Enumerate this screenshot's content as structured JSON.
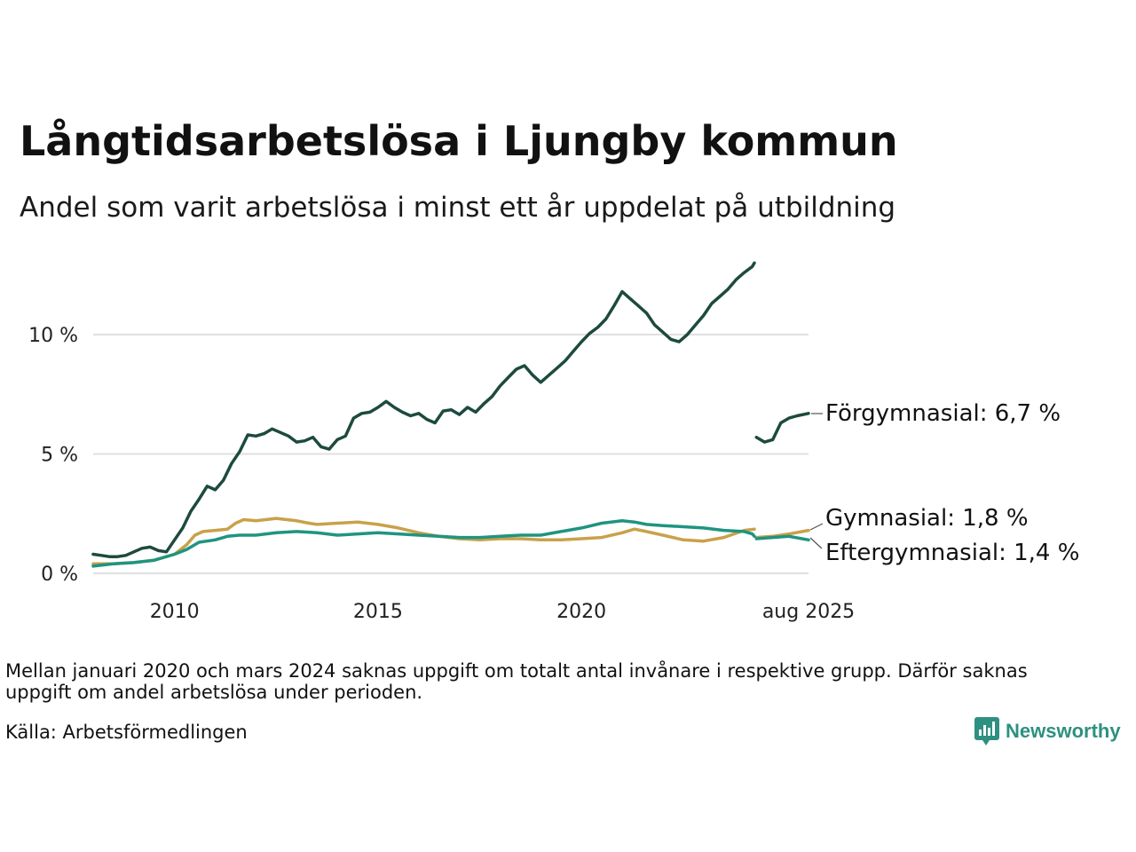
{
  "chart_data": {
    "type": "line",
    "title": "Långtidsarbetslösa i Ljungby kommun",
    "subtitle": "Andel som varit arbetslösa i minst ett år uppdelat på utbildning",
    "y_ticks": [
      {
        "value": 0,
        "label": "0 %"
      },
      {
        "value": 5,
        "label": "5 %"
      },
      {
        "value": 10,
        "label": "10 %"
      }
    ],
    "x_ticks": [
      {
        "value": 2010,
        "label": "2010"
      },
      {
        "value": 2015,
        "label": "2015"
      },
      {
        "value": 2020,
        "label": "2020"
      },
      {
        "value": 2025.58,
        "label": "aug 2025"
      }
    ],
    "xlim": [
      2008.0,
      2025.58
    ],
    "ylim": [
      0,
      13
    ],
    "grid": true,
    "gap": {
      "from": 2021.0,
      "to": 2024.25
    },
    "series": [
      {
        "name": "Förgymnasial",
        "end_label": "Förgymnasial: 6,7 %",
        "color": "#1d4a3f",
        "points": [
          [
            2008.0,
            0.8
          ],
          [
            2008.2,
            0.75
          ],
          [
            2008.4,
            0.7
          ],
          [
            2008.6,
            0.7
          ],
          [
            2008.8,
            0.75
          ],
          [
            2009.0,
            0.9
          ],
          [
            2009.2,
            1.05
          ],
          [
            2009.4,
            1.1
          ],
          [
            2009.6,
            0.95
          ],
          [
            2009.8,
            0.9
          ],
          [
            2010.0,
            1.4
          ],
          [
            2010.2,
            1.9
          ],
          [
            2010.4,
            2.6
          ],
          [
            2010.6,
            3.1
          ],
          [
            2010.8,
            3.65
          ],
          [
            2011.0,
            3.5
          ],
          [
            2011.2,
            3.9
          ],
          [
            2011.4,
            4.6
          ],
          [
            2011.6,
            5.1
          ],
          [
            2011.8,
            5.8
          ],
          [
            2012.0,
            5.75
          ],
          [
            2012.2,
            5.85
          ],
          [
            2012.4,
            6.05
          ],
          [
            2012.6,
            5.9
          ],
          [
            2012.8,
            5.75
          ],
          [
            2013.0,
            5.5
          ],
          [
            2013.2,
            5.55
          ],
          [
            2013.4,
            5.7
          ],
          [
            2013.6,
            5.3
          ],
          [
            2013.8,
            5.2
          ],
          [
            2014.0,
            5.6
          ],
          [
            2014.2,
            5.75
          ],
          [
            2014.4,
            6.5
          ],
          [
            2014.6,
            6.7
          ],
          [
            2014.8,
            6.75
          ],
          [
            2015.0,
            6.95
          ],
          [
            2015.2,
            7.2
          ],
          [
            2015.4,
            6.95
          ],
          [
            2015.6,
            6.75
          ],
          [
            2015.8,
            6.6
          ],
          [
            2016.0,
            6.7
          ],
          [
            2016.2,
            6.45
          ],
          [
            2016.4,
            6.3
          ],
          [
            2016.6,
            6.8
          ],
          [
            2016.8,
            6.85
          ],
          [
            2017.0,
            6.65
          ],
          [
            2017.2,
            6.95
          ],
          [
            2017.4,
            6.75
          ],
          [
            2017.6,
            7.1
          ],
          [
            2017.8,
            7.4
          ],
          [
            2018.0,
            7.85
          ],
          [
            2018.2,
            8.2
          ],
          [
            2018.4,
            8.55
          ],
          [
            2018.6,
            8.7
          ],
          [
            2018.8,
            8.3
          ],
          [
            2019.0,
            8.0
          ],
          [
            2019.2,
            8.3
          ],
          [
            2019.4,
            8.6
          ],
          [
            2019.6,
            8.9
          ],
          [
            2019.8,
            9.3
          ],
          [
            2020.0,
            9.7
          ],
          [
            2020.2,
            10.05
          ],
          [
            2020.4,
            10.3
          ],
          [
            2020.6,
            10.65
          ],
          [
            2020.8,
            11.2
          ],
          [
            2021.0,
            11.8
          ],
          [
            2021.2,
            11.5
          ],
          [
            2021.4,
            11.2
          ],
          [
            2021.6,
            10.9
          ],
          [
            2021.8,
            10.4
          ],
          [
            2022.0,
            10.1
          ],
          [
            2022.2,
            9.8
          ],
          [
            2022.4,
            9.7
          ],
          [
            2022.6,
            10.0
          ],
          [
            2022.8,
            10.4
          ],
          [
            2023.0,
            10.8
          ],
          [
            2023.2,
            11.3
          ],
          [
            2023.4,
            11.6
          ],
          [
            2023.6,
            11.9
          ],
          [
            2023.8,
            12.3
          ],
          [
            2024.0,
            12.6
          ],
          [
            2024.2,
            12.85
          ],
          [
            2024.25,
            13.0
          ],
          null,
          [
            2024.3,
            5.7
          ],
          [
            2024.5,
            5.5
          ],
          [
            2024.7,
            5.6
          ],
          [
            2024.9,
            6.3
          ],
          [
            2025.1,
            6.5
          ],
          [
            2025.3,
            6.6
          ],
          [
            2025.58,
            6.7
          ]
        ]
      },
      {
        "name": "Gymnasial",
        "end_label": "Gymnasial: 1,8 %",
        "color": "#c9a14a",
        "points": [
          [
            2008.0,
            0.4
          ],
          [
            2008.5,
            0.4
          ],
          [
            2009.0,
            0.45
          ],
          [
            2009.5,
            0.55
          ],
          [
            2010.0,
            0.8
          ],
          [
            2010.3,
            1.2
          ],
          [
            2010.5,
            1.6
          ],
          [
            2010.7,
            1.75
          ],
          [
            2011.0,
            1.8
          ],
          [
            2011.3,
            1.85
          ],
          [
            2011.5,
            2.1
          ],
          [
            2011.7,
            2.25
          ],
          [
            2012.0,
            2.2
          ],
          [
            2012.5,
            2.3
          ],
          [
            2013.0,
            2.2
          ],
          [
            2013.3,
            2.1
          ],
          [
            2013.5,
            2.05
          ],
          [
            2014.0,
            2.1
          ],
          [
            2014.5,
            2.15
          ],
          [
            2015.0,
            2.05
          ],
          [
            2015.5,
            1.9
          ],
          [
            2016.0,
            1.7
          ],
          [
            2016.5,
            1.55
          ],
          [
            2017.0,
            1.45
          ],
          [
            2017.5,
            1.4
          ],
          [
            2018.0,
            1.45
          ],
          [
            2018.5,
            1.45
          ],
          [
            2019.0,
            1.4
          ],
          [
            2019.5,
            1.4
          ],
          [
            2020.0,
            1.45
          ],
          [
            2020.5,
            1.5
          ],
          [
            2021.0,
            1.7
          ],
          [
            2021.3,
            1.85
          ],
          [
            2021.6,
            1.75
          ],
          [
            2022.0,
            1.6
          ],
          [
            2022.5,
            1.4
          ],
          [
            2023.0,
            1.35
          ],
          [
            2023.5,
            1.5
          ],
          [
            2024.0,
            1.8
          ],
          [
            2024.25,
            1.85
          ],
          null,
          [
            2024.3,
            1.5
          ],
          [
            2024.7,
            1.55
          ],
          [
            2025.1,
            1.65
          ],
          [
            2025.58,
            1.8
          ]
        ]
      },
      {
        "name": "Eftergymnasial",
        "end_label": "Eftergymnasial: 1,4 %",
        "color": "#1f9480",
        "points": [
          [
            2008.0,
            0.3
          ],
          [
            2008.5,
            0.4
          ],
          [
            2009.0,
            0.45
          ],
          [
            2009.5,
            0.55
          ],
          [
            2010.0,
            0.8
          ],
          [
            2010.3,
            1.0
          ],
          [
            2010.6,
            1.3
          ],
          [
            2011.0,
            1.4
          ],
          [
            2011.3,
            1.55
          ],
          [
            2011.6,
            1.6
          ],
          [
            2012.0,
            1.6
          ],
          [
            2012.5,
            1.7
          ],
          [
            2013.0,
            1.75
          ],
          [
            2013.5,
            1.7
          ],
          [
            2014.0,
            1.6
          ],
          [
            2014.5,
            1.65
          ],
          [
            2015.0,
            1.7
          ],
          [
            2015.5,
            1.65
          ],
          [
            2016.0,
            1.6
          ],
          [
            2016.5,
            1.55
          ],
          [
            2017.0,
            1.5
          ],
          [
            2017.5,
            1.5
          ],
          [
            2018.0,
            1.55
          ],
          [
            2018.5,
            1.6
          ],
          [
            2019.0,
            1.6
          ],
          [
            2019.5,
            1.75
          ],
          [
            2020.0,
            1.9
          ],
          [
            2020.5,
            2.1
          ],
          [
            2021.0,
            2.2
          ],
          [
            2021.3,
            2.15
          ],
          [
            2021.6,
            2.05
          ],
          [
            2022.0,
            2.0
          ],
          [
            2022.5,
            1.95
          ],
          [
            2023.0,
            1.9
          ],
          [
            2023.5,
            1.8
          ],
          [
            2024.0,
            1.75
          ],
          [
            2024.2,
            1.65
          ],
          [
            2024.25,
            1.55
          ],
          null,
          [
            2024.3,
            1.45
          ],
          [
            2024.7,
            1.5
          ],
          [
            2025.1,
            1.55
          ],
          [
            2025.58,
            1.4
          ]
        ]
      }
    ]
  },
  "note": "Mellan januari 2020 och mars 2024 saknas uppgift om totalt antal invånare i respektive grupp. Därför saknas uppgift om andel arbetslösa under perioden.",
  "source": "Källa: Arbetsförmedlingen",
  "brand": {
    "name": "Newsworthy",
    "color": "#2e9080"
  }
}
